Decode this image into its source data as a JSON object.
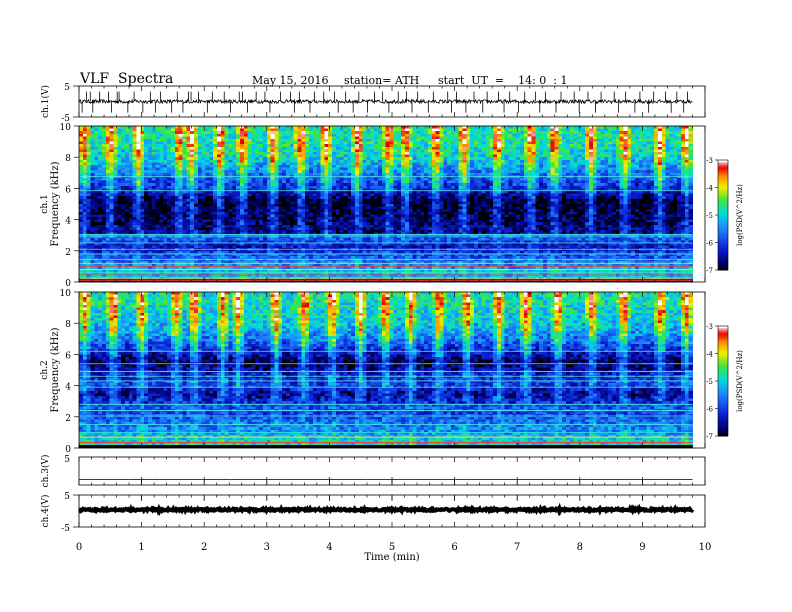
{
  "header": {
    "title": "VLF  Spectra",
    "date": "May 15, 2016",
    "station": "station= ATH",
    "start": "start  UT  =    14: 0  : 1"
  },
  "chart_data": [
    {
      "type": "line",
      "panel": "ch1-waveform",
      "ylabel": "ch.1(V)",
      "yticks": [
        "5",
        "-5"
      ],
      "ylim": [
        -5,
        5
      ],
      "xlim": [
        0,
        10
      ],
      "data_x_max": 9.8,
      "baseline": 0,
      "noise_amplitude": 0.6,
      "spikes_up": [
        0.12,
        0.18,
        0.33,
        0.47,
        0.61,
        0.64,
        0.88,
        1.14,
        1.3,
        1.57,
        1.75,
        1.79,
        1.91,
        2.13,
        2.32,
        2.56,
        2.61,
        2.83,
        2.97,
        3.22,
        3.38,
        3.52,
        3.76,
        3.91,
        4.08,
        4.26,
        4.47,
        4.72,
        4.85,
        5.1,
        5.23,
        5.41,
        5.66,
        5.89,
        6.03,
        6.31,
        6.52,
        6.7,
        6.88,
        7.12,
        7.29,
        7.45,
        7.7,
        7.91,
        8.13,
        8.34,
        8.55,
        8.73,
        8.96,
        9.18,
        9.37,
        9.55,
        9.72
      ],
      "spikes_down": [
        0.05,
        0.22,
        0.52,
        0.78,
        1.02,
        1.22,
        1.48,
        1.66,
        2.05,
        2.42,
        2.69,
        3.05,
        3.44,
        3.69,
        4.14,
        4.38,
        4.61,
        4.95,
        5.32,
        5.58,
        5.95,
        6.18,
        6.45,
        6.79,
        7.02,
        7.36,
        7.62,
        7.99,
        8.25,
        8.62,
        8.88,
        9.1,
        9.46,
        9.66
      ]
    },
    {
      "type": "heatmap",
      "panel": "ch1-spectrogram",
      "ylabel": "Frequency (kHz)",
      "sublabel": "ch.1",
      "yticks": [
        "0",
        "2",
        "4",
        "6",
        "8",
        "10"
      ],
      "ylim": [
        0,
        10
      ],
      "xlim": [
        0,
        10
      ],
      "data_x_max": 9.8,
      "colorbar": {
        "label": "log(PSD(V^2/Hz)",
        "ticks": [
          "-3",
          "-4",
          "-5",
          "-6",
          "-7"
        ],
        "range": [
          -7,
          -3
        ]
      },
      "background_profile": [
        [
          0,
          -5.6
        ],
        [
          0.3,
          -5.4
        ],
        [
          0.6,
          -5.0
        ],
        [
          1.0,
          -5.4
        ],
        [
          1.6,
          -5.8
        ],
        [
          2.3,
          -6.4
        ],
        [
          2.9,
          -5.6
        ],
        [
          3.1,
          -6.6
        ],
        [
          4.0,
          -6.8
        ],
        [
          5.2,
          -7.0
        ],
        [
          5.9,
          -6.2
        ],
        [
          6.3,
          -6.0
        ],
        [
          7.0,
          -5.6
        ],
        [
          8.0,
          -5.0
        ],
        [
          9.0,
          -4.8
        ],
        [
          10.0,
          -4.8
        ]
      ],
      "lines_khz": [
        0.1,
        0.2,
        0.3,
        0.45,
        0.6,
        0.8,
        1.0,
        1.2,
        1.45,
        1.8,
        2.1,
        2.5,
        2.95,
        3.05,
        5.85,
        6.75
      ],
      "bursts_min": [
        0.08,
        0.5,
        0.95,
        1.6,
        1.8,
        2.25,
        2.62,
        3.1,
        3.55,
        3.95,
        4.45,
        4.95,
        5.22,
        5.7,
        6.15,
        6.68,
        7.22,
        7.6,
        8.18,
        8.72,
        9.28,
        9.7
      ]
    },
    {
      "type": "heatmap",
      "panel": "ch2-spectrogram",
      "ylabel": "Frequency (kHz)",
      "sublabel": "ch.2",
      "yticks": [
        "0",
        "2",
        "4",
        "6",
        "8",
        "10"
      ],
      "ylim": [
        0,
        10
      ],
      "xlim": [
        0,
        10
      ],
      "data_x_max": 9.8,
      "colorbar": {
        "label": "log(PSD(V^2/Hz)",
        "ticks": [
          "-3",
          "-4",
          "-5",
          "-6",
          "-7"
        ],
        "range": [
          -7,
          -3
        ]
      },
      "background_profile": [
        [
          0,
          -5.0
        ],
        [
          0.5,
          -5.0
        ],
        [
          1.0,
          -5.4
        ],
        [
          1.6,
          -5.6
        ],
        [
          2.2,
          -6.0
        ],
        [
          2.6,
          -5.8
        ],
        [
          3.0,
          -6.2
        ],
        [
          3.5,
          -6.6
        ],
        [
          4.0,
          -6.0
        ],
        [
          4.6,
          -6.2
        ],
        [
          5.0,
          -6.5
        ],
        [
          5.5,
          -6.9
        ],
        [
          6.0,
          -6.4
        ],
        [
          6.5,
          -6.0
        ],
        [
          7.0,
          -5.6
        ],
        [
          8.0,
          -5.1
        ],
        [
          9.0,
          -4.9
        ],
        [
          10.0,
          -4.8
        ]
      ],
      "lines_khz": [
        0.35,
        0.7,
        1.0,
        1.5,
        2.05,
        2.4,
        2.8,
        3.9,
        4.3,
        4.6,
        4.9,
        5.4,
        6.2
      ],
      "bursts_min": [
        0.1,
        0.55,
        1.0,
        1.55,
        1.85,
        2.3,
        2.55,
        3.15,
        3.6,
        4.05,
        4.5,
        4.9,
        5.3,
        5.75,
        6.2,
        6.7,
        7.15,
        7.65,
        8.2,
        8.7,
        9.3,
        9.7
      ]
    },
    {
      "type": "line",
      "panel": "ch3-waveform",
      "ylabel": "ch.3(V)",
      "yticks": [
        "5"
      ],
      "ylim": [
        -5,
        5
      ],
      "xlim": [
        0,
        10
      ],
      "data_x_max": 9.8,
      "baseline": -3.0,
      "noise_amplitude": 0.02,
      "spikes_up": [],
      "spikes_down": []
    },
    {
      "type": "line",
      "panel": "ch4-waveform",
      "ylabel": "ch.4(V)",
      "yticks": [
        "5",
        "-5"
      ],
      "ylim": [
        -5,
        5
      ],
      "xlim": [
        0,
        10
      ],
      "data_x_max": 9.8,
      "baseline": 0.4,
      "noise_amplitude": 0.3,
      "spikes_up": [],
      "spikes_down": [],
      "xlabel": "Time  (min)",
      "xticks": [
        "0",
        "1",
        "2",
        "3",
        "4",
        "5",
        "6",
        "7",
        "8",
        "9",
        "10"
      ]
    }
  ]
}
